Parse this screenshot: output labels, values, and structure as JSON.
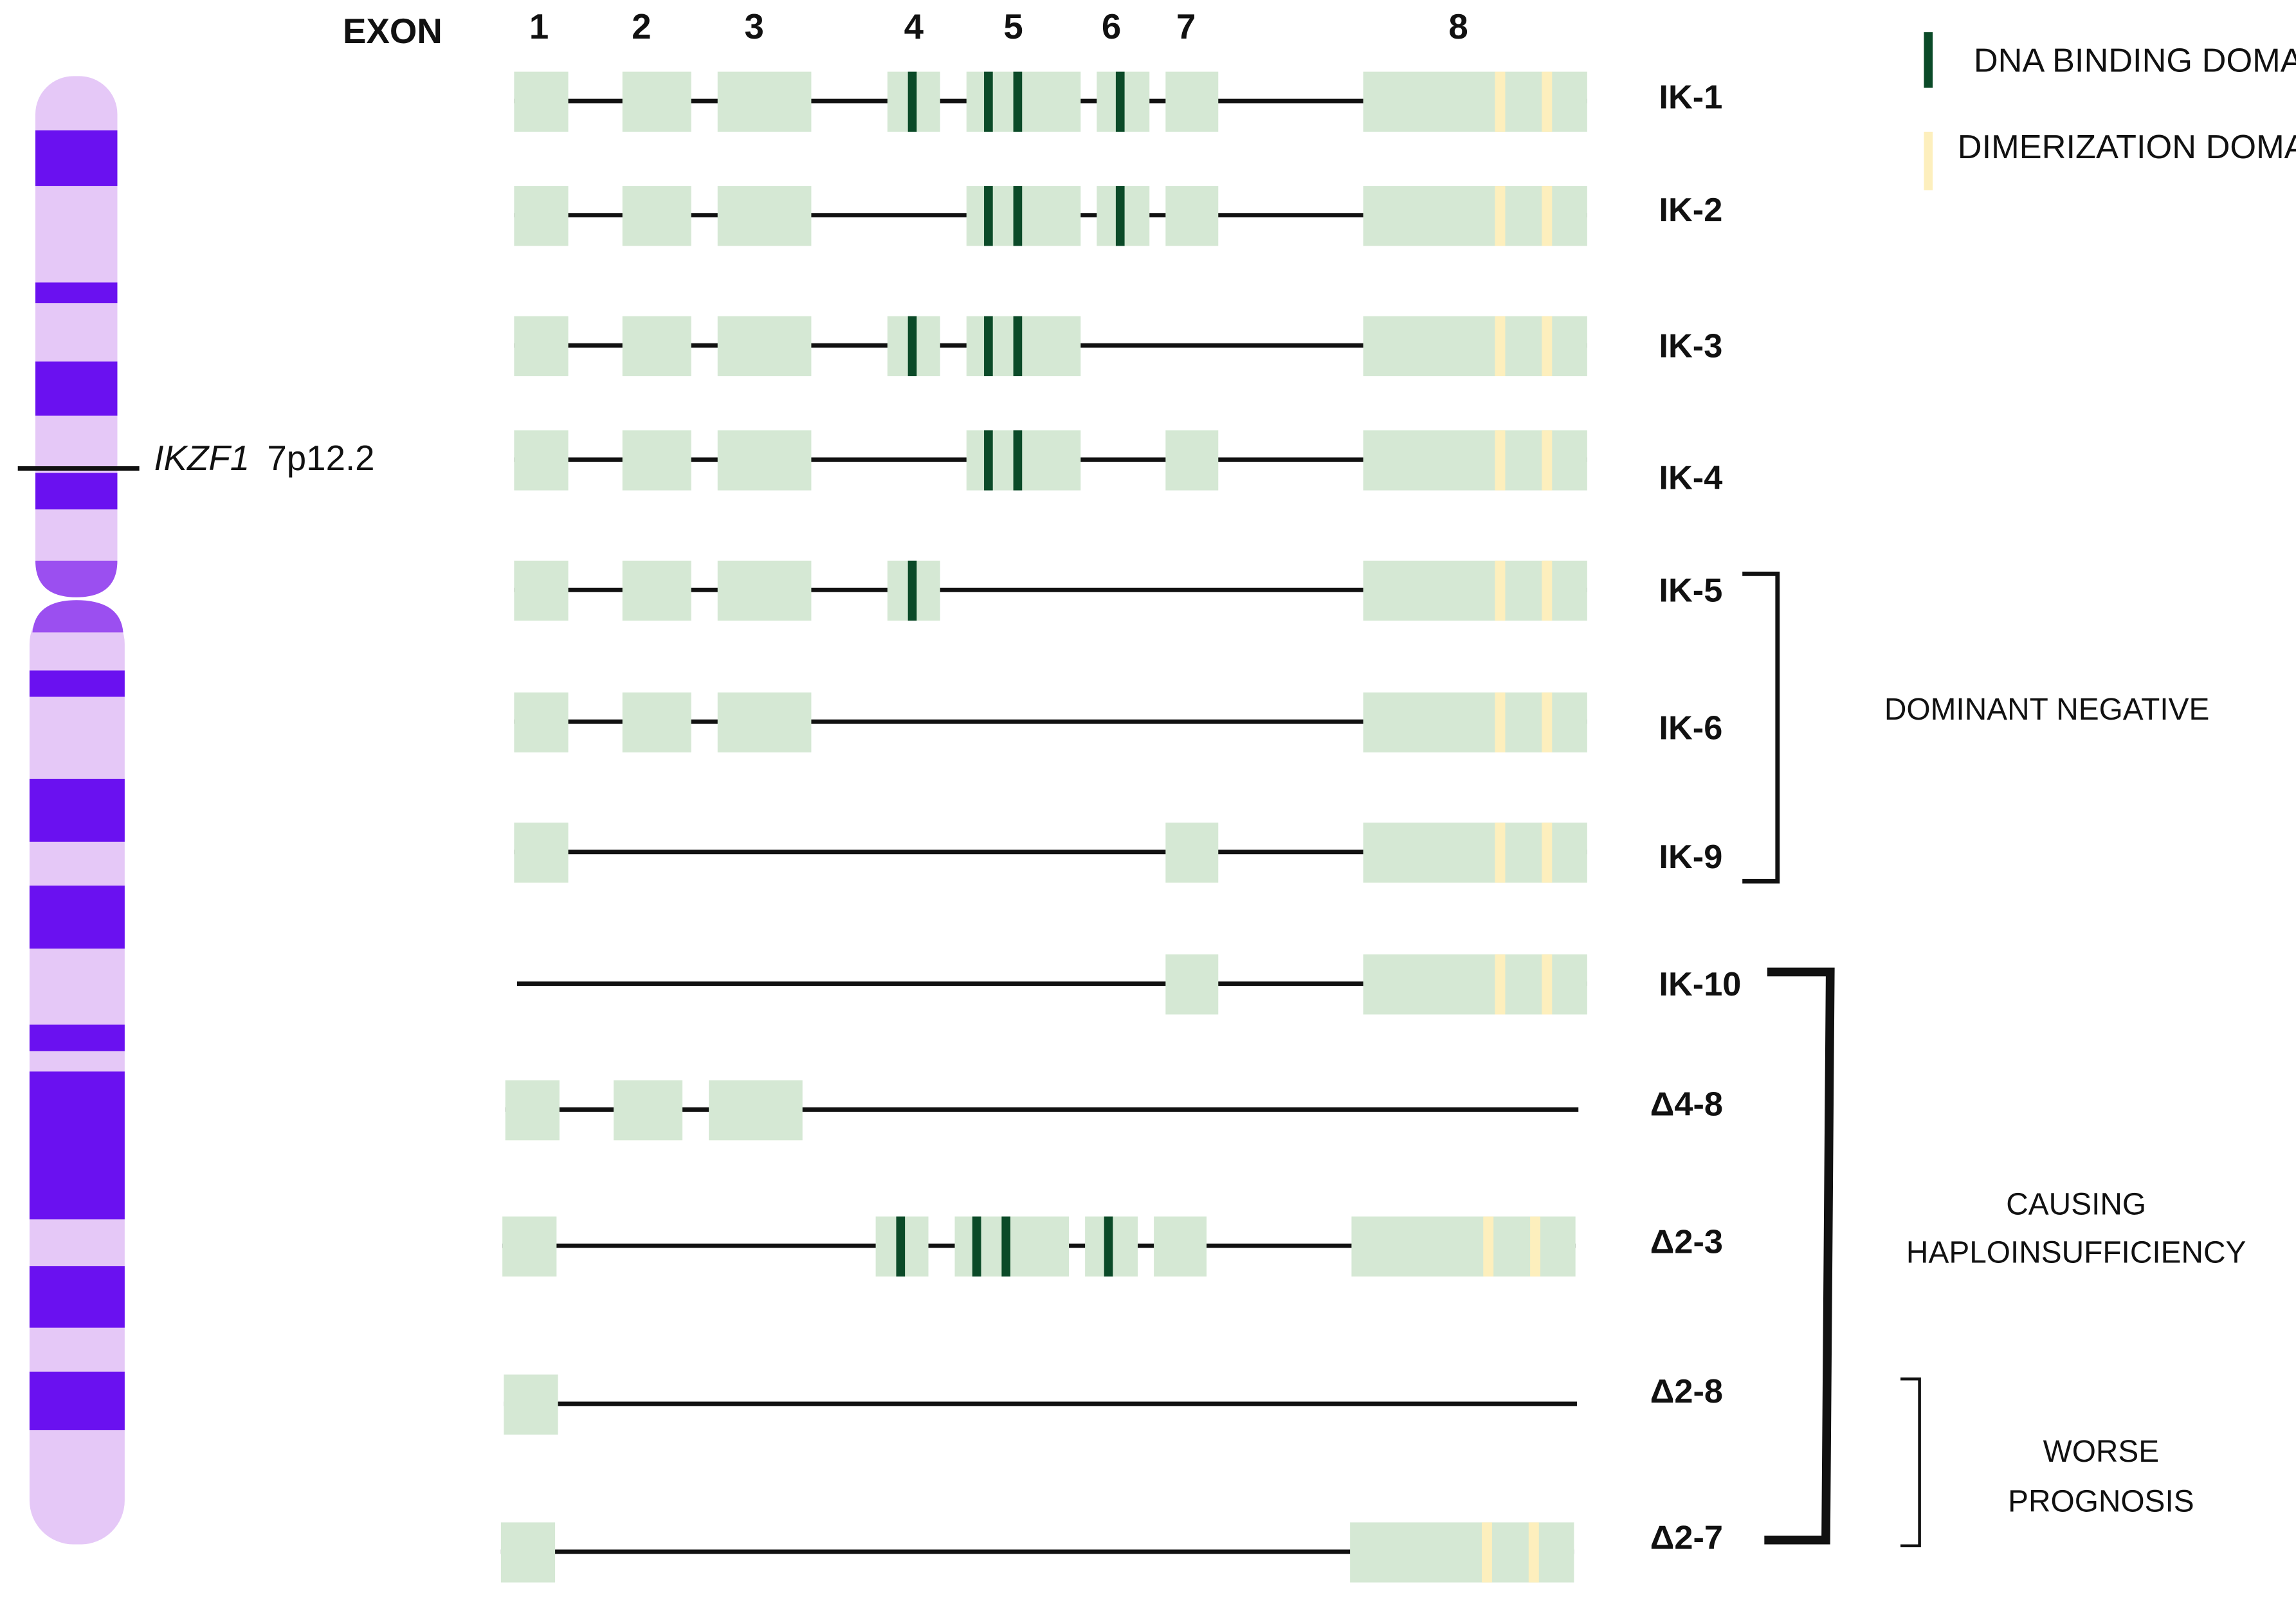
{
  "exon_header": "EXON",
  "exons": [
    "1",
    "2",
    "3",
    "4",
    "5",
    "6",
    "7",
    "8"
  ],
  "isoforms": [
    "IK-1",
    "IK-2",
    "IK-3",
    "IK-4",
    "IK-5",
    "IK-6",
    "IK-9",
    "IK-10",
    "Δ4-8",
    "Δ2-3",
    "Δ2-8",
    "Δ2-7"
  ],
  "legend": [
    "DNA BINDING DOMAINS",
    "DIMERIZATION DOMAINS"
  ],
  "groups": {
    "dominant_negative": "DOMINANT NEGATIVE",
    "haploinsufficiency": [
      "CAUSING",
      "HAPLOINSUFFICIENCY"
    ],
    "worse_prognosis": [
      "WORSE",
      "PROGNOSIS"
    ]
  },
  "chromosome": {
    "gene": "IKZF1",
    "band": "7p12.2"
  }
}
